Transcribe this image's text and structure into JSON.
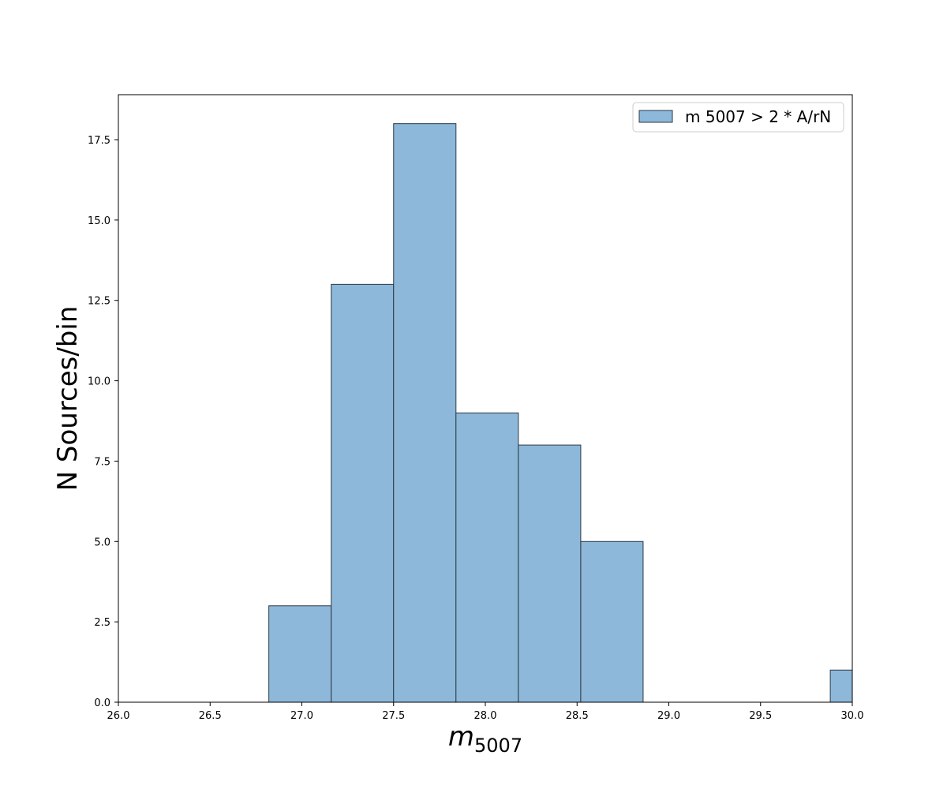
{
  "chart_data": {
    "type": "bar",
    "histogram": true,
    "bin_edges": [
      26.82,
      27.16,
      27.5,
      27.84,
      28.18,
      28.52,
      28.86,
      29.2,
      29.54,
      29.88,
      30.22
    ],
    "values": [
      3,
      13,
      18,
      9,
      8,
      5,
      0,
      0,
      0,
      1
    ],
    "xlim": [
      26.0,
      30.0
    ],
    "ylim": [
      0,
      18.9
    ],
    "x_ticks": [
      "26.0",
      "26.5",
      "27.0",
      "27.5",
      "28.0",
      "28.5",
      "29.0",
      "29.5",
      "30.0"
    ],
    "y_ticks": [
      "0.0",
      "2.5",
      "5.0",
      "7.5",
      "10.0",
      "12.5",
      "15.0",
      "17.5"
    ],
    "xlabel": {
      "base": "m",
      "sub": "5007"
    },
    "ylabel": "N Sources/bin",
    "legend": {
      "label": "m 5007 > 2 * A/rN",
      "placement": "upper right"
    },
    "grid": false,
    "colors": {
      "bar_fill": "#8db8d9",
      "bar_edge": "#2b3a48"
    }
  }
}
